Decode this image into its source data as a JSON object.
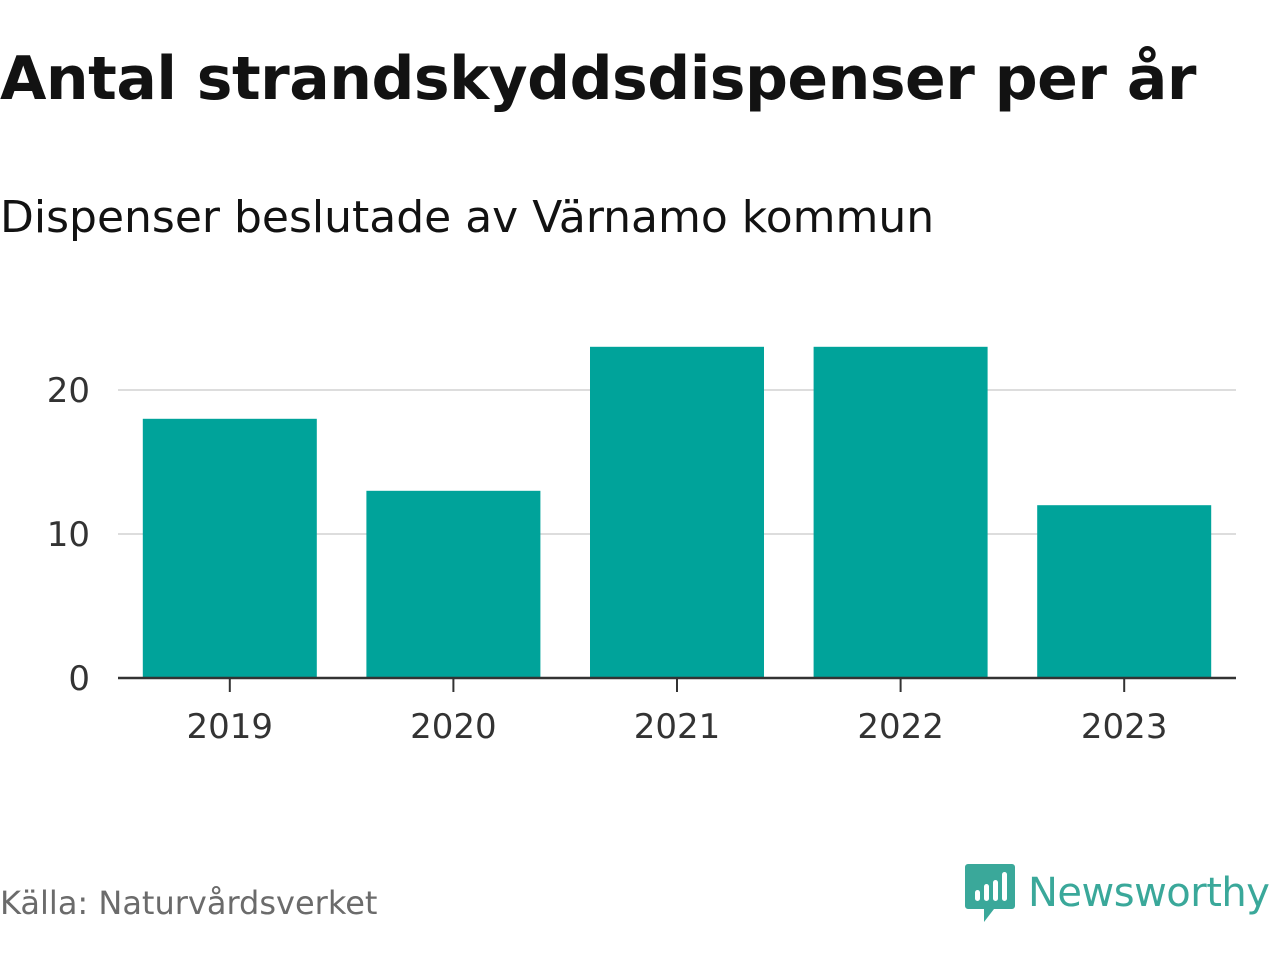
{
  "title": "Antal strandskyddsdispenser per år",
  "subtitle": "Dispenser beslutade av Värnamo kommun",
  "source": "Källa: Naturvårdsverket",
  "brand": {
    "name": "Newsworthy",
    "icon": "newsworthy-logo-icon",
    "color": "#3aa89a"
  },
  "colors": {
    "bar": "#00a39a",
    "grid": "#dddddd",
    "axis": "#333333"
  },
  "chart_data": {
    "type": "bar",
    "title": "Antal strandskyddsdispenser per år",
    "subtitle": "Dispenser beslutade av Värnamo kommun",
    "categories": [
      "2019",
      "2020",
      "2021",
      "2022",
      "2023"
    ],
    "values": [
      18,
      13,
      23,
      23,
      12
    ],
    "xlabel": "",
    "ylabel": "",
    "yticks": [
      0,
      10,
      20
    ],
    "ylim": [
      0,
      25
    ],
    "grid": true,
    "legend": "none"
  }
}
